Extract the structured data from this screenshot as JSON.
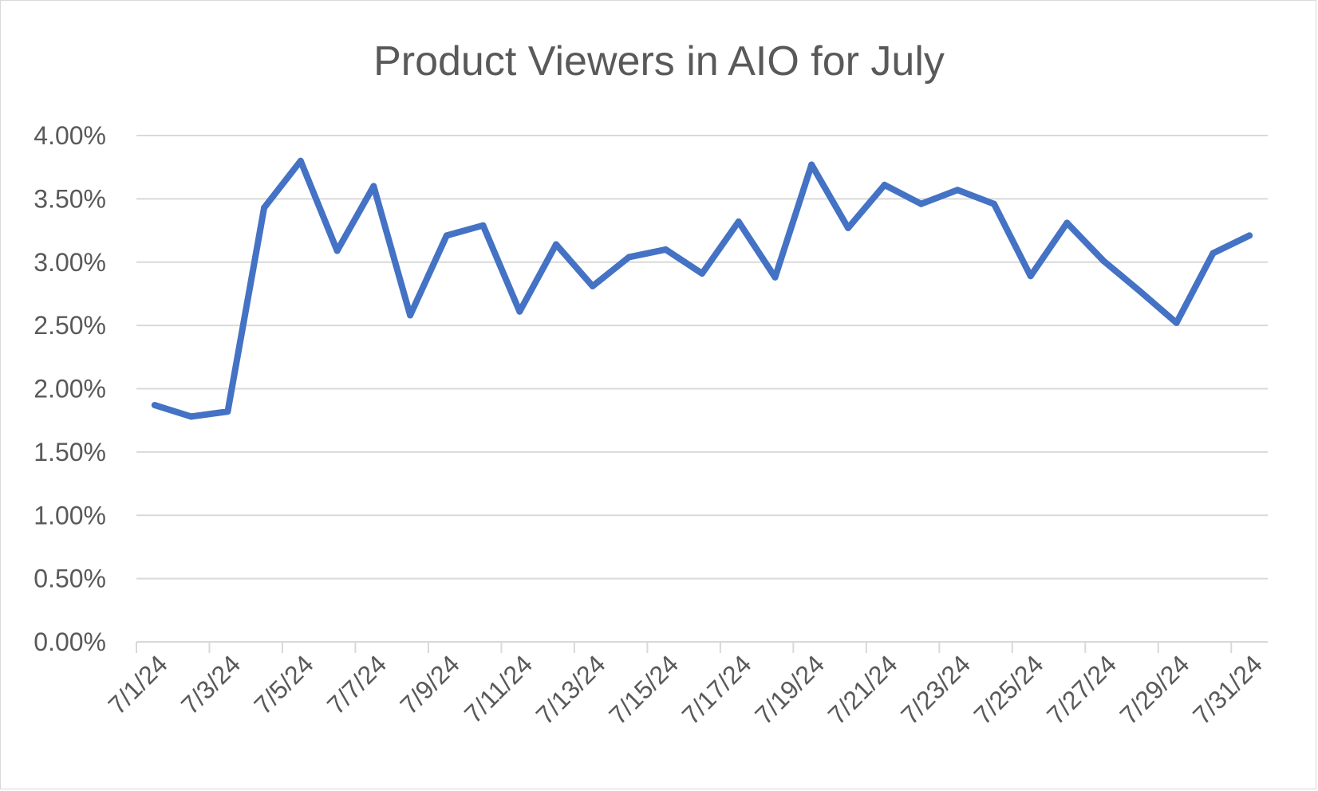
{
  "chart_data": {
    "type": "line",
    "title": "Product Viewers in AIO for July",
    "xlabel": "",
    "ylabel": "",
    "ylim": [
      0,
      0.04
    ],
    "y_ticks": [
      "0.00%",
      "0.50%",
      "1.00%",
      "1.50%",
      "2.00%",
      "2.50%",
      "3.00%",
      "3.50%",
      "4.00%"
    ],
    "x_tick_labels": [
      "7/1/24",
      "7/3/24",
      "7/5/24",
      "7/7/24",
      "7/9/24",
      "7/11/24",
      "7/13/24",
      "7/15/24",
      "7/17/24",
      "7/19/24",
      "7/21/24",
      "7/23/24",
      "7/25/24",
      "7/27/24",
      "7/29/24",
      "7/31/24"
    ],
    "grid": true,
    "legend": "none",
    "x": [
      "7/1/24",
      "7/2/24",
      "7/3/24",
      "7/4/24",
      "7/5/24",
      "7/6/24",
      "7/7/24",
      "7/8/24",
      "7/9/24",
      "7/10/24",
      "7/11/24",
      "7/12/24",
      "7/13/24",
      "7/14/24",
      "7/15/24",
      "7/16/24",
      "7/17/24",
      "7/18/24",
      "7/19/24",
      "7/20/24",
      "7/21/24",
      "7/22/24",
      "7/23/24",
      "7/24/24",
      "7/25/24",
      "7/26/24",
      "7/27/24",
      "7/28/24",
      "7/29/24",
      "7/30/24",
      "7/31/24"
    ],
    "series": [
      {
        "color": "#4472c4",
        "values": [
          0.0187,
          0.0178,
          0.0182,
          0.0343,
          0.038,
          0.0309,
          0.036,
          0.0258,
          0.0321,
          0.0329,
          0.0261,
          0.0314,
          0.0281,
          0.0304,
          0.031,
          0.0291,
          0.0332,
          0.0288,
          0.0377,
          0.0327,
          0.0361,
          0.0346,
          0.0357,
          0.0346,
          0.0289,
          0.0331,
          0.0301,
          0.0277,
          0.0252,
          0.0307,
          0.0321
        ]
      }
    ]
  }
}
